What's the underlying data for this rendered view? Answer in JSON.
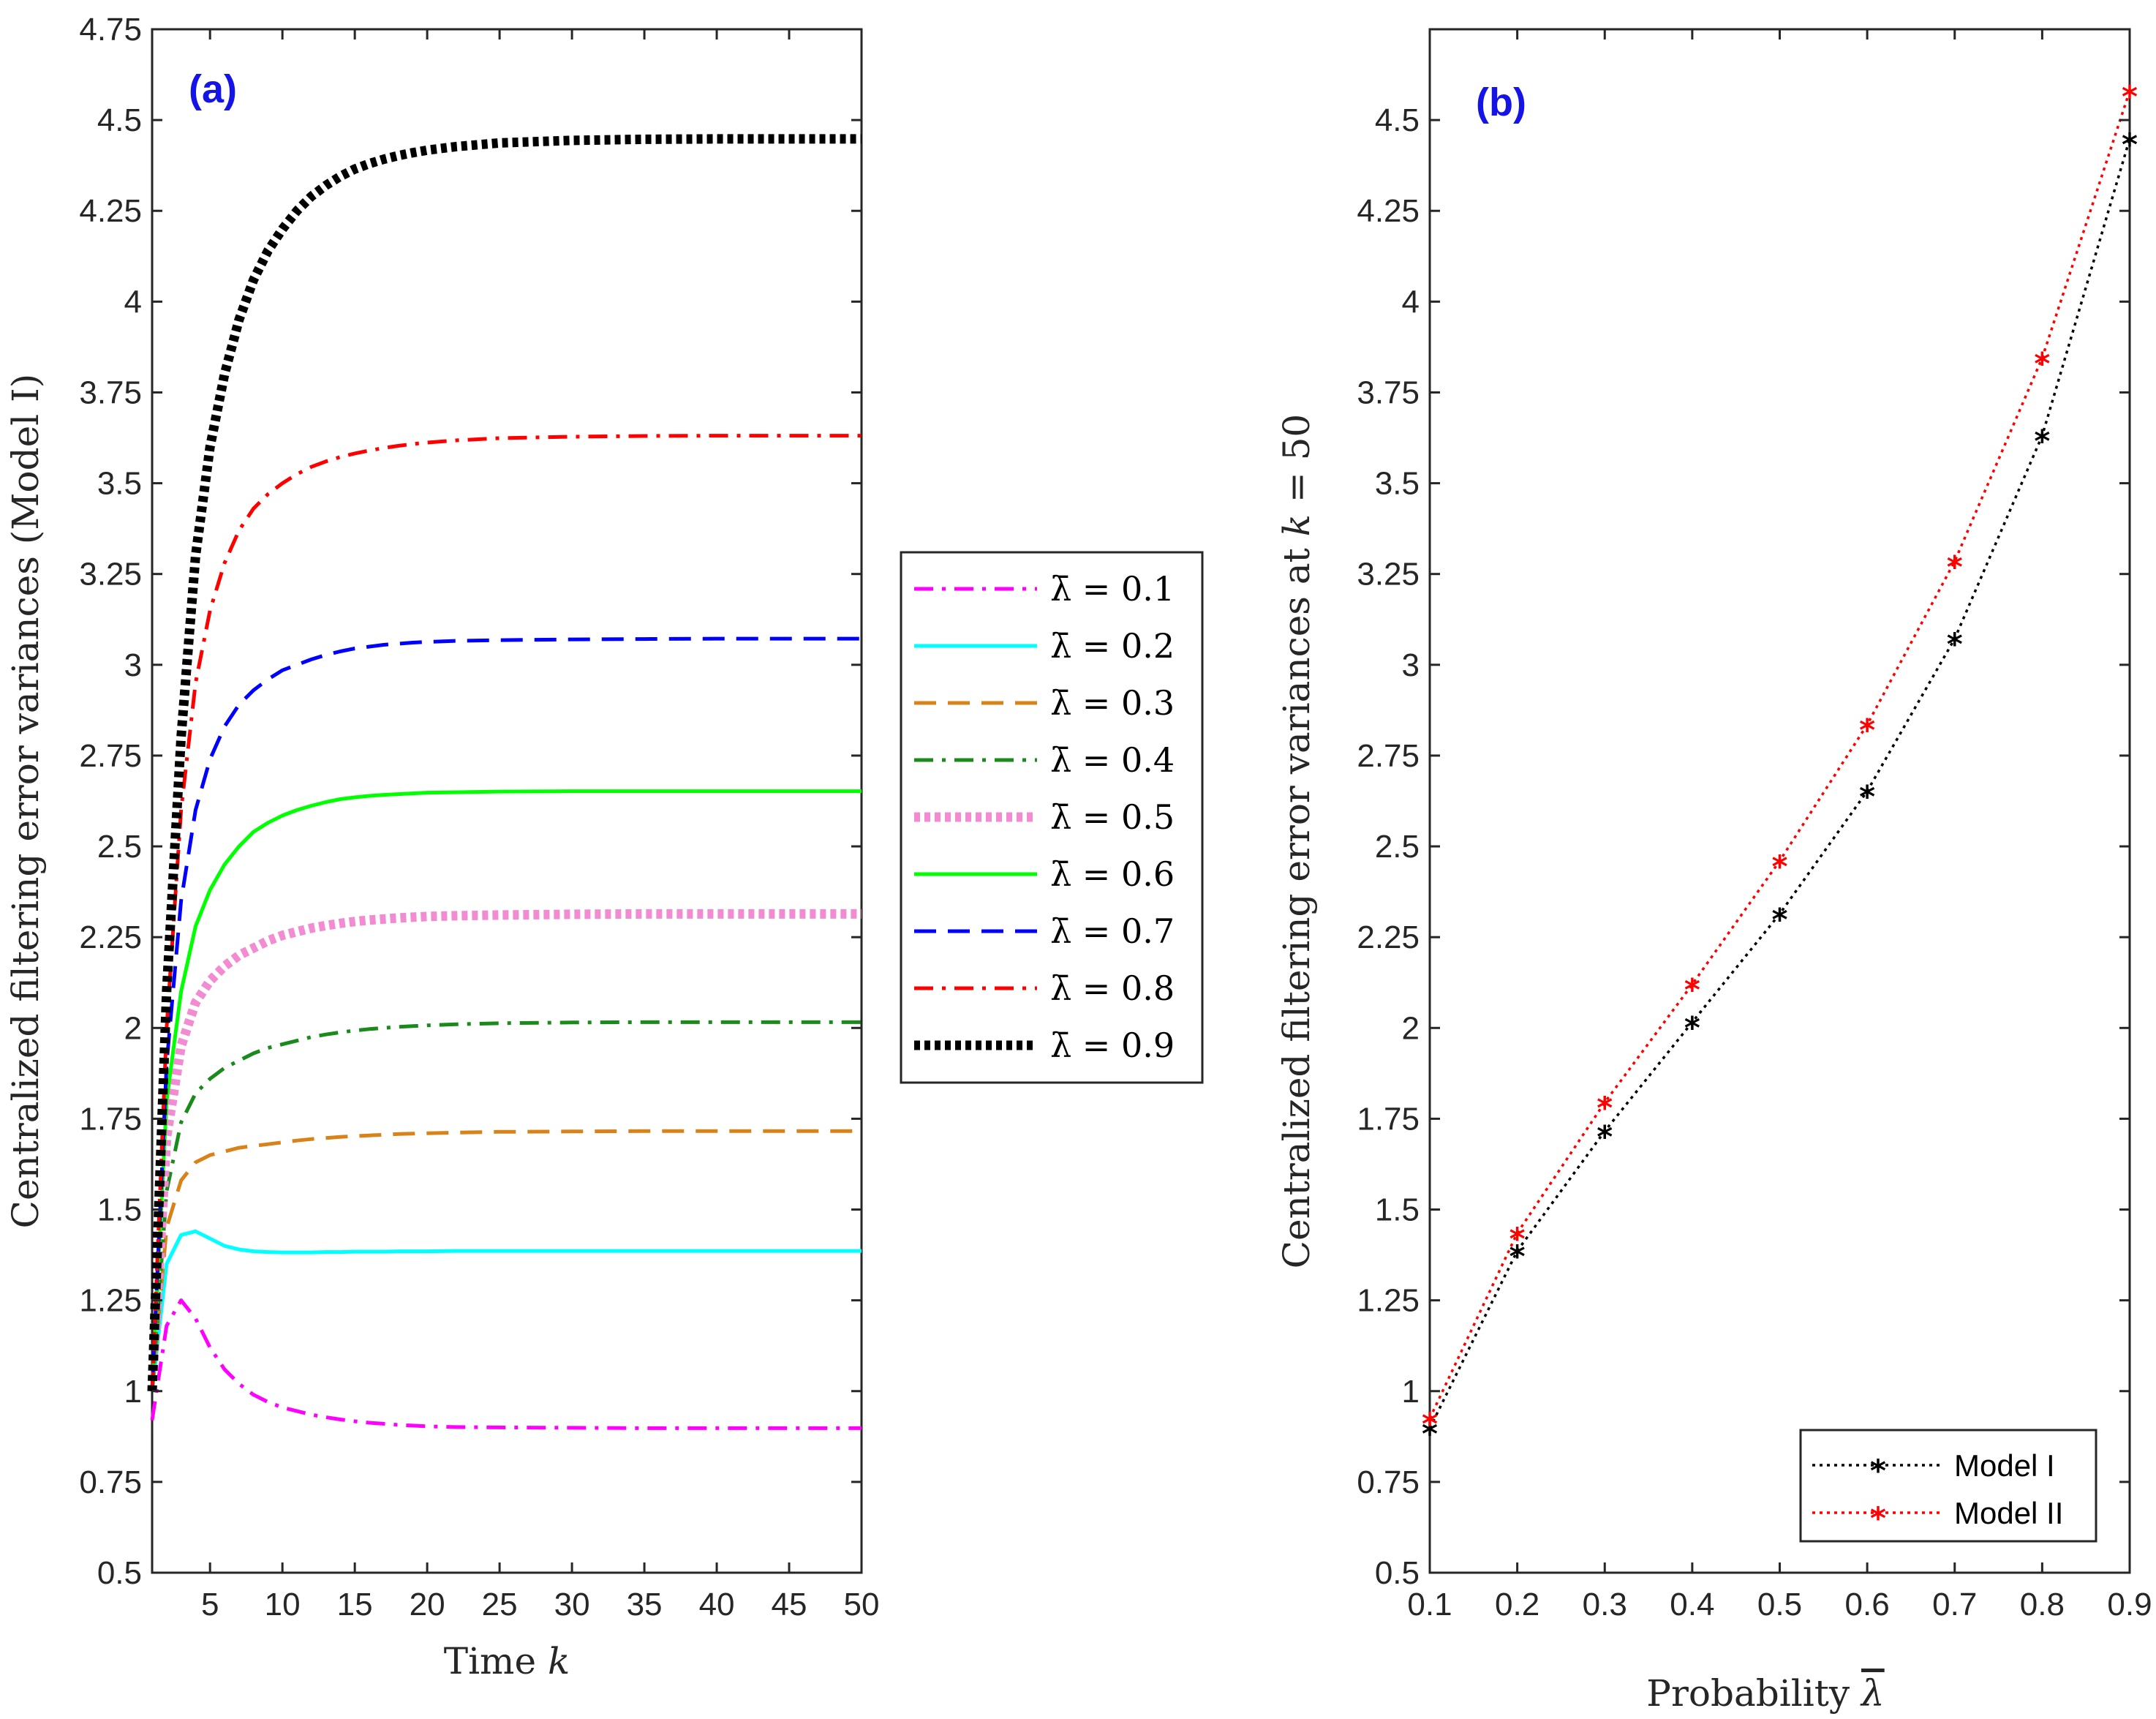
{
  "chart_data": [
    {
      "type": "line",
      "panel_label": "(a)",
      "xlabel": "Time k",
      "ylabel": "Centralized filtering error variances (Model I)",
      "xlim": [
        1,
        50
      ],
      "ylim": [
        0.5,
        4.75
      ],
      "xticks": [
        5,
        10,
        15,
        20,
        25,
        30,
        35,
        40,
        45,
        50
      ],
      "xtick_labels": [
        "5",
        "10",
        "15",
        "20",
        "25",
        "30",
        "35",
        "40",
        "45",
        "50"
      ],
      "yticks": [
        0.5,
        0.75,
        1,
        1.25,
        1.5,
        1.75,
        2,
        2.25,
        2.5,
        2.75,
        3,
        3.25,
        3.5,
        3.75,
        4,
        4.25,
        4.5,
        4.75
      ],
      "ytick_labels": [
        "0.5",
        "0.75",
        "1",
        "1.25",
        "1.5",
        "1.75",
        "2",
        "2.25",
        "2.5",
        "2.75",
        "3",
        "3.25",
        "3.5",
        "3.75",
        "4",
        "4.25",
        "4.5",
        "4.75"
      ],
      "legend_position": "outside-right",
      "x": [
        1,
        2,
        3,
        4,
        5,
        6,
        7,
        8,
        9,
        10,
        11,
        12,
        13,
        14,
        15,
        16,
        17,
        18,
        19,
        20,
        22,
        25,
        30,
        35,
        40,
        45,
        50
      ],
      "series": [
        {
          "name": "λ̄ = 0.1",
          "color": "#ff00ff",
          "dash": "dashdot",
          "values": [
            0.92,
            1.18,
            1.25,
            1.2,
            1.12,
            1.06,
            1.02,
            0.99,
            0.97,
            0.955,
            0.945,
            0.935,
            0.928,
            0.922,
            0.917,
            0.913,
            0.91,
            0.907,
            0.905,
            0.903,
            0.901,
            0.9,
            0.899,
            0.898,
            0.898,
            0.898,
            0.898
          ]
        },
        {
          "name": "λ̄ = 0.2",
          "color": "#00ffff",
          "dash": "solid",
          "values": [
            1.0,
            1.35,
            1.43,
            1.44,
            1.42,
            1.4,
            1.39,
            1.385,
            1.383,
            1.382,
            1.382,
            1.382,
            1.383,
            1.383,
            1.384,
            1.384,
            1.384,
            1.385,
            1.385,
            1.385,
            1.386,
            1.386,
            1.386,
            1.386,
            1.386,
            1.386,
            1.386
          ]
        },
        {
          "name": "λ̄ = 0.3",
          "color": "#d9821a",
          "dash": "dashed",
          "values": [
            1.0,
            1.45,
            1.58,
            1.63,
            1.65,
            1.66,
            1.67,
            1.675,
            1.68,
            1.685,
            1.69,
            1.694,
            1.697,
            1.7,
            1.702,
            1.704,
            1.706,
            1.708,
            1.709,
            1.71,
            1.712,
            1.714,
            1.715,
            1.716,
            1.716,
            1.716,
            1.716
          ]
        },
        {
          "name": "λ̄ = 0.4",
          "color": "#1a8a1a",
          "dash": "dashdot",
          "values": [
            1.0,
            1.55,
            1.74,
            1.82,
            1.86,
            1.89,
            1.91,
            1.93,
            1.945,
            1.955,
            1.965,
            1.975,
            1.982,
            1.988,
            1.993,
            1.997,
            2.0,
            2.003,
            2.005,
            2.007,
            2.01,
            2.013,
            2.015,
            2.016,
            2.016,
            2.016,
            2.016
          ]
        },
        {
          "name": "λ̄ = 0.5",
          "color": "#f28bd1",
          "dash": "dotted",
          "values": [
            1.0,
            1.7,
            1.95,
            2.07,
            2.13,
            2.17,
            2.2,
            2.22,
            2.24,
            2.255,
            2.265,
            2.275,
            2.282,
            2.288,
            2.293,
            2.297,
            2.3,
            2.303,
            2.305,
            2.307,
            2.309,
            2.311,
            2.313,
            2.314,
            2.314,
            2.314,
            2.314
          ]
        },
        {
          "name": "λ̄ = 0.6",
          "color": "#00ff00",
          "dash": "solid",
          "values": [
            1.0,
            1.8,
            2.1,
            2.28,
            2.38,
            2.45,
            2.5,
            2.54,
            2.565,
            2.585,
            2.6,
            2.612,
            2.622,
            2.63,
            2.635,
            2.639,
            2.642,
            2.644,
            2.646,
            2.648,
            2.649,
            2.651,
            2.652,
            2.652,
            2.652,
            2.652,
            2.652
          ]
        },
        {
          "name": "λ̄ = 0.7",
          "color": "#0000ff",
          "dash": "dashed",
          "values": [
            1.0,
            1.9,
            2.35,
            2.6,
            2.74,
            2.83,
            2.89,
            2.93,
            2.96,
            2.985,
            3.0,
            3.015,
            3.027,
            3.037,
            3.045,
            3.05,
            3.055,
            3.058,
            3.061,
            3.063,
            3.066,
            3.068,
            3.07,
            3.071,
            3.072,
            3.072,
            3.072
          ]
        },
        {
          "name": "λ̄ = 0.8",
          "color": "#ff0000",
          "dash": "dashdot",
          "values": [
            1.0,
            2.0,
            2.6,
            2.95,
            3.15,
            3.28,
            3.37,
            3.43,
            3.47,
            3.5,
            3.525,
            3.545,
            3.56,
            3.572,
            3.582,
            3.59,
            3.597,
            3.603,
            3.608,
            3.612,
            3.618,
            3.624,
            3.628,
            3.63,
            3.631,
            3.631,
            3.631
          ]
        },
        {
          "name": "λ̄ = 0.9",
          "color": "#000000",
          "dash": "dotted",
          "values": [
            1.0,
            2.1,
            2.8,
            3.3,
            3.6,
            3.8,
            3.95,
            4.06,
            4.14,
            4.2,
            4.25,
            4.29,
            4.32,
            4.345,
            4.365,
            4.38,
            4.392,
            4.402,
            4.41,
            4.417,
            4.427,
            4.437,
            4.444,
            4.447,
            4.448,
            4.448,
            4.448
          ]
        }
      ]
    },
    {
      "type": "line",
      "panel_label": "(b)",
      "xlabel": "Probability λ̄",
      "ylabel": "Centralized filtering error variances at k = 50",
      "xlim": [
        0.1,
        0.9
      ],
      "ylim": [
        0.5,
        4.75
      ],
      "xticks": [
        0.1,
        0.2,
        0.3,
        0.4,
        0.5,
        0.6,
        0.7,
        0.8,
        0.9
      ],
      "xtick_labels": [
        "0.1",
        "0.2",
        "0.3",
        "0.4",
        "0.5",
        "0.6",
        "0.7",
        "0.8",
        "0.9"
      ],
      "yticks": [
        0.5,
        0.75,
        1,
        1.25,
        1.5,
        1.75,
        2,
        2.25,
        2.5,
        2.75,
        3,
        3.25,
        3.5,
        3.75,
        4,
        4.25,
        4.5
      ],
      "ytick_labels": [
        "0.5",
        "0.75",
        "1",
        "1.25",
        "1.5",
        "1.75",
        "2",
        "2.25",
        "2.5",
        "2.75",
        "3",
        "3.25",
        "3.5",
        "3.75",
        "4",
        "4.25",
        "4.5"
      ],
      "legend_position": "bottom-right",
      "x": [
        0.1,
        0.2,
        0.3,
        0.4,
        0.5,
        0.6,
        0.7,
        0.8,
        0.9
      ],
      "series": [
        {
          "name": "Model I",
          "color": "#000000",
          "dash": "dotted",
          "marker": "*",
          "values": [
            0.898,
            1.386,
            1.716,
            2.016,
            2.314,
            2.652,
            3.072,
            3.631,
            4.448
          ]
        },
        {
          "name": "Model II",
          "color": "#ff0000",
          "dash": "dotted",
          "marker": "*",
          "values": [
            0.925,
            1.435,
            1.795,
            2.12,
            2.46,
            2.835,
            3.285,
            3.845,
            4.58
          ]
        }
      ]
    }
  ]
}
